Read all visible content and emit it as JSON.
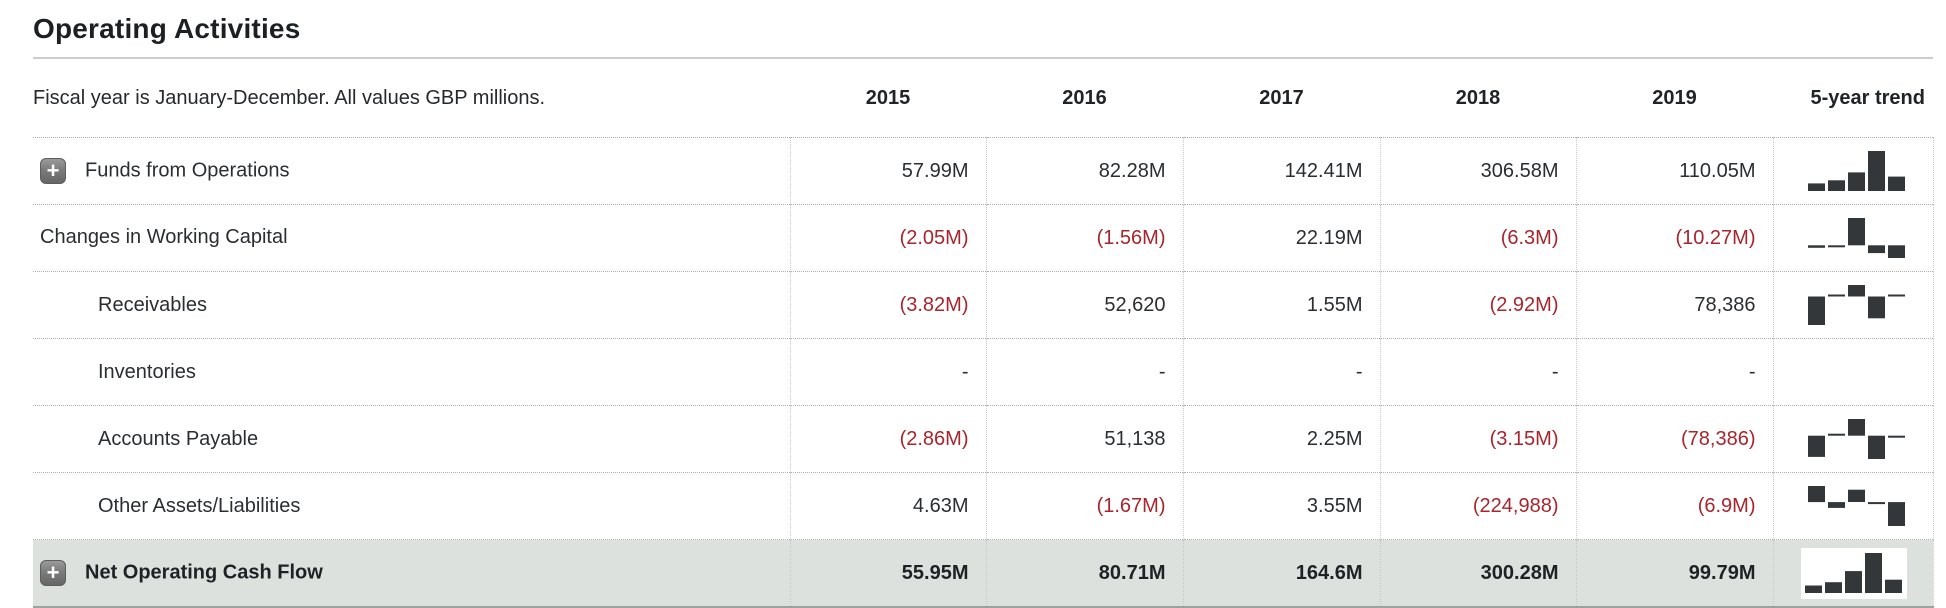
{
  "header": {
    "title": "Operating Activities",
    "note": "Fiscal year is January-December. All values GBP millions.",
    "year_columns": [
      "2015",
      "2016",
      "2017",
      "2018",
      "2019"
    ],
    "trend_column": "5-year trend"
  },
  "icons": {
    "expand_plus": "+"
  },
  "colors": {
    "negative_text": "#a8252c",
    "bar": "#33373a",
    "highlight_row_bg": "#dde1de"
  },
  "rows": [
    {
      "label": "Funds from Operations",
      "expandable": true,
      "indent": 0,
      "highlight": false,
      "values": [
        "57.99M",
        "82.28M",
        "142.41M",
        "306.58M",
        "110.05M"
      ],
      "negatives": [
        false,
        false,
        false,
        false,
        false
      ],
      "trend": [
        57.99,
        82.28,
        142.41,
        306.58,
        110.05
      ]
    },
    {
      "label": "Changes in Working Capital",
      "expandable": false,
      "indent": 0,
      "highlight": false,
      "values": [
        "(2.05M)",
        "(1.56M)",
        "22.19M",
        "(6.3M)",
        "(10.27M)"
      ],
      "negatives": [
        true,
        true,
        false,
        true,
        true
      ],
      "trend": [
        -2.05,
        -1.56,
        22.19,
        -6.3,
        -10.27
      ]
    },
    {
      "label": "Receivables",
      "expandable": false,
      "indent": 1,
      "highlight": false,
      "values": [
        "(3.82M)",
        "52,620",
        "1.55M",
        "(2.92M)",
        "78,386"
      ],
      "negatives": [
        true,
        false,
        false,
        true,
        false
      ],
      "trend": [
        -3.82,
        0.05262,
        1.55,
        -2.92,
        0.078386
      ]
    },
    {
      "label": "Inventories",
      "expandable": false,
      "indent": 1,
      "highlight": false,
      "values": [
        "-",
        "-",
        "-",
        "-",
        "-"
      ],
      "negatives": [
        false,
        false,
        false,
        false,
        false
      ],
      "trend": null
    },
    {
      "label": "Accounts Payable",
      "expandable": false,
      "indent": 1,
      "highlight": false,
      "values": [
        "(2.86M)",
        "51,138",
        "2.25M",
        "(3.15M)",
        "(78,386)"
      ],
      "negatives": [
        true,
        false,
        false,
        true,
        true
      ],
      "trend": [
        -2.86,
        0.051138,
        2.25,
        -3.15,
        -0.078386
      ]
    },
    {
      "label": "Other Assets/Liabilities",
      "expandable": false,
      "indent": 1,
      "highlight": false,
      "values": [
        "4.63M",
        "(1.67M)",
        "3.55M",
        "(224,988)",
        "(6.9M)"
      ],
      "negatives": [
        false,
        true,
        false,
        true,
        true
      ],
      "trend": [
        4.63,
        -1.67,
        3.55,
        -0.224988,
        -6.9
      ]
    },
    {
      "label": "Net Operating Cash Flow",
      "expandable": true,
      "indent": 0,
      "highlight": true,
      "values": [
        "55.95M",
        "80.71M",
        "164.6M",
        "300.28M",
        "99.79M"
      ],
      "negatives": [
        false,
        false,
        false,
        false,
        false
      ],
      "trend": [
        55.95,
        80.71,
        164.6,
        300.28,
        99.79
      ]
    }
  ]
}
